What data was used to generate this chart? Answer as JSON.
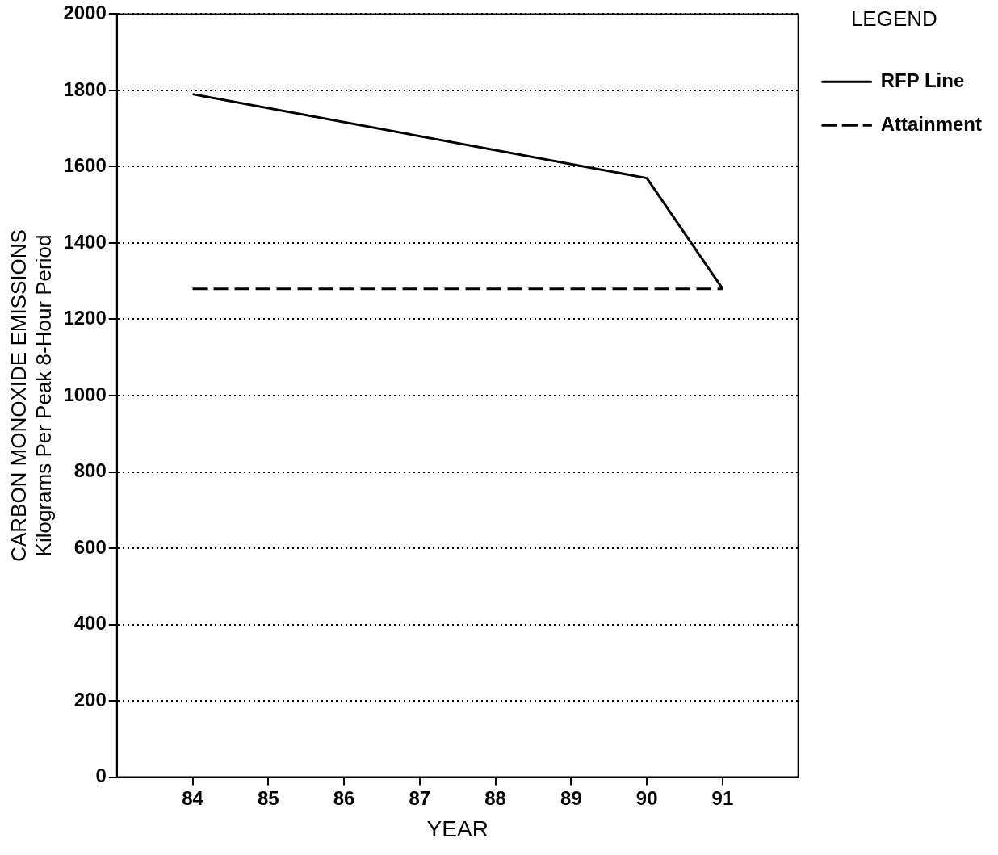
{
  "chart_data": {
    "type": "line",
    "xlabel": "YEAR",
    "ylabel": "CARBON MONOXIDE EMISSIONS\nKilograms Per Peak 8-Hour Period",
    "legend_title": "LEGEND",
    "xlim": [
      83,
      92
    ],
    "xticks": [
      84,
      85,
      86,
      87,
      88,
      89,
      90,
      91
    ],
    "ylim": [
      0,
      2000
    ],
    "yticks": [
      0,
      200,
      400,
      600,
      800,
      1000,
      1200,
      1400,
      1600,
      1800,
      2000
    ],
    "grid": "y",
    "legend": "top right",
    "marker": "none",
    "series": [
      {
        "name": "RFP Line",
        "color": "#000000",
        "line_style": "solid",
        "x": [
          84,
          90,
          91
        ],
        "values": [
          1790,
          1570,
          1280
        ]
      },
      {
        "name": "Attainment",
        "color": "#000000",
        "line_style": "dashed",
        "x": [
          84,
          91
        ],
        "values": [
          1280,
          1280
        ]
      }
    ]
  }
}
